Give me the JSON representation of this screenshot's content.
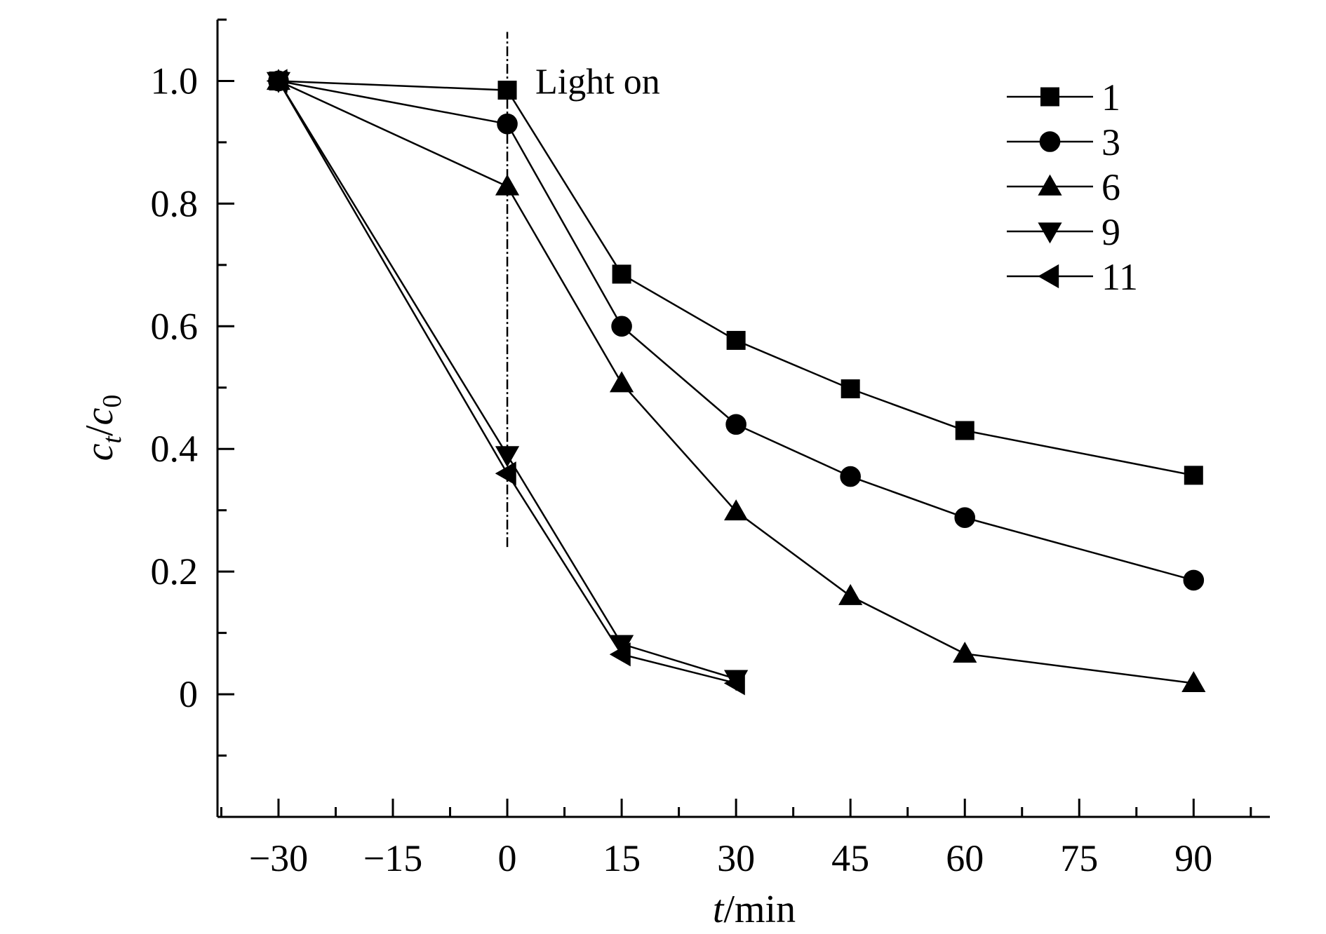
{
  "chart_data": {
    "type": "line",
    "title": "",
    "xlabel": {
      "italic": "t",
      "rest": "/min"
    },
    "ylabel": {
      "c1": "c",
      "s1": "t",
      "slash": "/",
      "c2": "c",
      "s2": "0"
    },
    "xlim": [
      -38,
      100
    ],
    "ylim": [
      -0.2,
      1.1
    ],
    "x_ticks": [
      -30,
      -15,
      0,
      15,
      30,
      45,
      60,
      75,
      90
    ],
    "x_tick_labels": [
      "−30",
      "−15",
      "0",
      "15",
      "30",
      "45",
      "60",
      "75",
      "90"
    ],
    "y_ticks": [
      0,
      0.2,
      0.4,
      0.6,
      0.8,
      1.0
    ],
    "y_tick_labels": [
      "0",
      "0.2",
      "0.4",
      "0.6",
      "0.8",
      "1.0"
    ],
    "grid": false,
    "legend_position": "top-right",
    "annotation": {
      "text": "Light on",
      "x": 0,
      "y_from": 0.24,
      "y_to": 1.08
    },
    "series": [
      {
        "name": "1",
        "marker": "square",
        "x": [
          -30,
          0,
          15,
          30,
          45,
          60,
          90
        ],
        "y": [
          1.0,
          0.985,
          0.685,
          0.577,
          0.498,
          0.43,
          0.357
        ]
      },
      {
        "name": "3",
        "marker": "circle",
        "x": [
          -30,
          0,
          15,
          30,
          45,
          60,
          90
        ],
        "y": [
          1.0,
          0.93,
          0.6,
          0.44,
          0.355,
          0.288,
          0.186
        ]
      },
      {
        "name": "6",
        "marker": "triangle-up",
        "x": [
          -30,
          0,
          15,
          30,
          45,
          60,
          90
        ],
        "y": [
          1.0,
          0.828,
          0.507,
          0.298,
          0.16,
          0.066,
          0.018
        ]
      },
      {
        "name": "9",
        "marker": "triangle-down",
        "x": [
          -30,
          0,
          15,
          30
        ],
        "y": [
          1.0,
          0.39,
          0.082,
          0.025
        ]
      },
      {
        "name": "11",
        "marker": "triangle-left",
        "x": [
          -30,
          0,
          15,
          30
        ],
        "y": [
          1.0,
          0.36,
          0.065,
          0.018
        ]
      }
    ]
  }
}
